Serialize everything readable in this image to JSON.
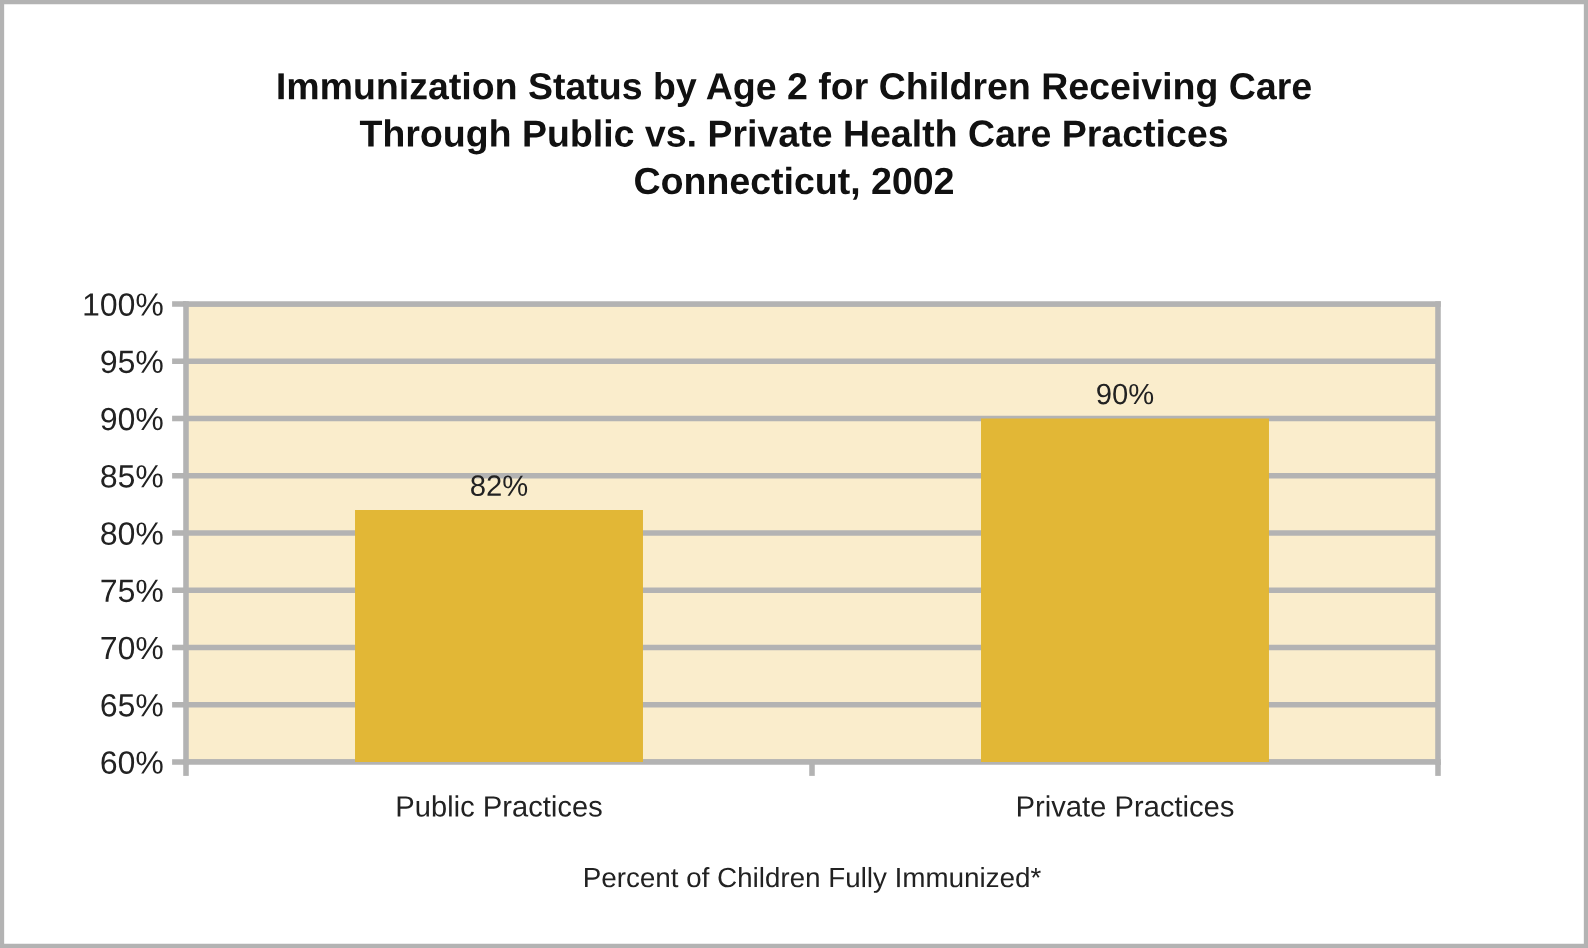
{
  "chart_data": {
    "type": "bar",
    "title": "Immunization Status by Age 2 for Children Receiving Care\nThrough Public vs. Private Health Care Practices\nConnecticut, 2002",
    "xlabel": "Percent of Children Fully Immunized*",
    "categories": [
      "Public Practices",
      "Private Practices"
    ],
    "values": [
      82,
      90
    ],
    "value_labels": [
      "82%",
      "90%"
    ],
    "color": "#e2b736",
    "ylim": [
      60,
      100
    ],
    "yticks": [
      {
        "value": 60,
        "label": "60%"
      },
      {
        "value": 65,
        "label": "65%"
      },
      {
        "value": 70,
        "label": "70%"
      },
      {
        "value": 75,
        "label": "75%"
      },
      {
        "value": 80,
        "label": "80%"
      },
      {
        "value": 85,
        "label": "85%"
      },
      {
        "value": 90,
        "label": "90%"
      },
      {
        "value": 95,
        "label": "95%"
      },
      {
        "value": 100,
        "label": "100%"
      }
    ],
    "grid": "y"
  }
}
